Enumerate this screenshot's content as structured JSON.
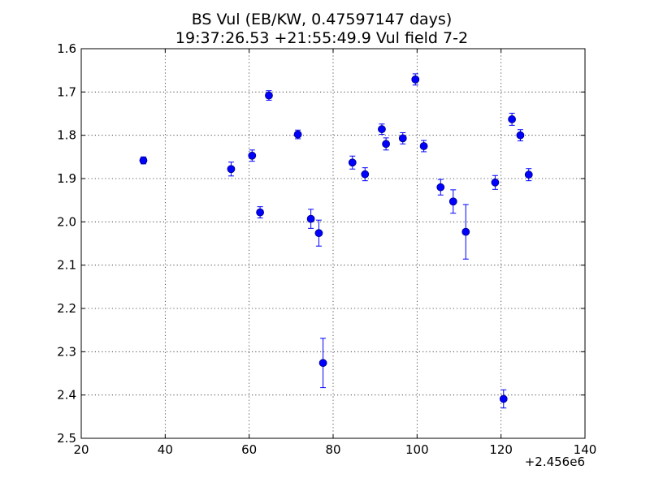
{
  "chart_data": {
    "type": "scatter",
    "title": "BS Vul (EB/KW, 0.47597147 days)",
    "subtitle": "19:37:26.53 +21:55:49.9 Vul field 7-2",
    "xlabel": "",
    "ylabel": "",
    "x_offset_label": "+2.456e6",
    "xlim": [
      20,
      140
    ],
    "ylim": [
      2.5,
      1.6
    ],
    "y_inverted": true,
    "grid": true,
    "legend": "none",
    "x_ticks": [
      "20",
      "40",
      "60",
      "80",
      "100",
      "120",
      "140"
    ],
    "y_ticks": [
      "1.6",
      "1.7",
      "1.8",
      "1.9",
      "2.0",
      "2.1",
      "2.2",
      "2.3",
      "2.4",
      "2.5"
    ],
    "marker_color": "#0000ff",
    "points": [
      {
        "x": 34.8,
        "y": 1.858,
        "err": 0.008
      },
      {
        "x": 55.7,
        "y": 1.878,
        "err": 0.016
      },
      {
        "x": 60.7,
        "y": 1.847,
        "err": 0.013
      },
      {
        "x": 62.6,
        "y": 1.978,
        "err": 0.013
      },
      {
        "x": 64.7,
        "y": 1.708,
        "err": 0.011
      },
      {
        "x": 71.6,
        "y": 1.798,
        "err": 0.01
      },
      {
        "x": 74.7,
        "y": 1.993,
        "err": 0.022
      },
      {
        "x": 76.6,
        "y": 2.026,
        "err": 0.03
      },
      {
        "x": 77.6,
        "y": 2.326,
        "err": 0.057
      },
      {
        "x": 84.6,
        "y": 1.863,
        "err": 0.015
      },
      {
        "x": 87.6,
        "y": 1.89,
        "err": 0.015
      },
      {
        "x": 91.6,
        "y": 1.786,
        "err": 0.012
      },
      {
        "x": 92.6,
        "y": 1.82,
        "err": 0.014
      },
      {
        "x": 96.6,
        "y": 1.807,
        "err": 0.013
      },
      {
        "x": 99.6,
        "y": 1.671,
        "err": 0.013
      },
      {
        "x": 101.6,
        "y": 1.825,
        "err": 0.013
      },
      {
        "x": 105.6,
        "y": 1.92,
        "err": 0.018
      },
      {
        "x": 108.6,
        "y": 1.953,
        "err": 0.027
      },
      {
        "x": 111.6,
        "y": 2.023,
        "err": 0.063
      },
      {
        "x": 118.6,
        "y": 1.909,
        "err": 0.016
      },
      {
        "x": 120.6,
        "y": 2.409,
        "err": 0.021
      },
      {
        "x": 122.6,
        "y": 1.763,
        "err": 0.014
      },
      {
        "x": 124.6,
        "y": 1.8,
        "err": 0.013
      },
      {
        "x": 126.6,
        "y": 1.891,
        "err": 0.014
      }
    ]
  }
}
